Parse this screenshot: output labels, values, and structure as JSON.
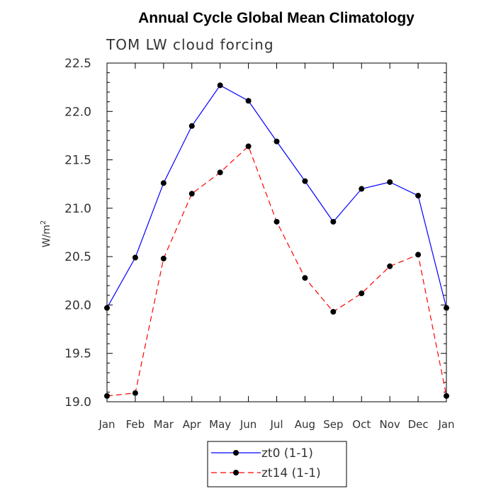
{
  "chart_data": {
    "type": "line",
    "title": "Annual Cycle Global Mean Climatology",
    "subtitle": "TOM LW cloud forcing",
    "xlabel": "",
    "ylabel": "W/m",
    "ylabel_superscript": "2",
    "ylim": [
      19.0,
      22.5
    ],
    "yticks": [
      "19.0",
      "19.5",
      "20.0",
      "20.5",
      "21.0",
      "21.5",
      "22.0",
      "22.5"
    ],
    "ytick_values": [
      19.0,
      19.5,
      20.0,
      20.5,
      21.0,
      21.5,
      22.0,
      22.5
    ],
    "categories": [
      "Jan",
      "Feb",
      "Mar",
      "Apr",
      "May",
      "Jun",
      "Jul",
      "Aug",
      "Sep",
      "Oct",
      "Nov",
      "Dec",
      "Jan"
    ],
    "series": [
      {
        "name": "zt0 (1-1)",
        "color": "#0000ff",
        "dash": "solid",
        "values": [
          19.97,
          20.49,
          21.26,
          21.85,
          22.27,
          22.11,
          21.69,
          21.28,
          20.86,
          21.2,
          21.27,
          21.13,
          19.97
        ]
      },
      {
        "name": "zt14 (1-1)",
        "color": "#ff0000",
        "dash": "dashed",
        "values": [
          19.06,
          19.09,
          20.48,
          21.15,
          21.37,
          21.64,
          20.86,
          20.28,
          19.93,
          20.12,
          20.4,
          20.52,
          19.06
        ]
      }
    ],
    "legend_position": "bottom-center",
    "grid": false
  }
}
